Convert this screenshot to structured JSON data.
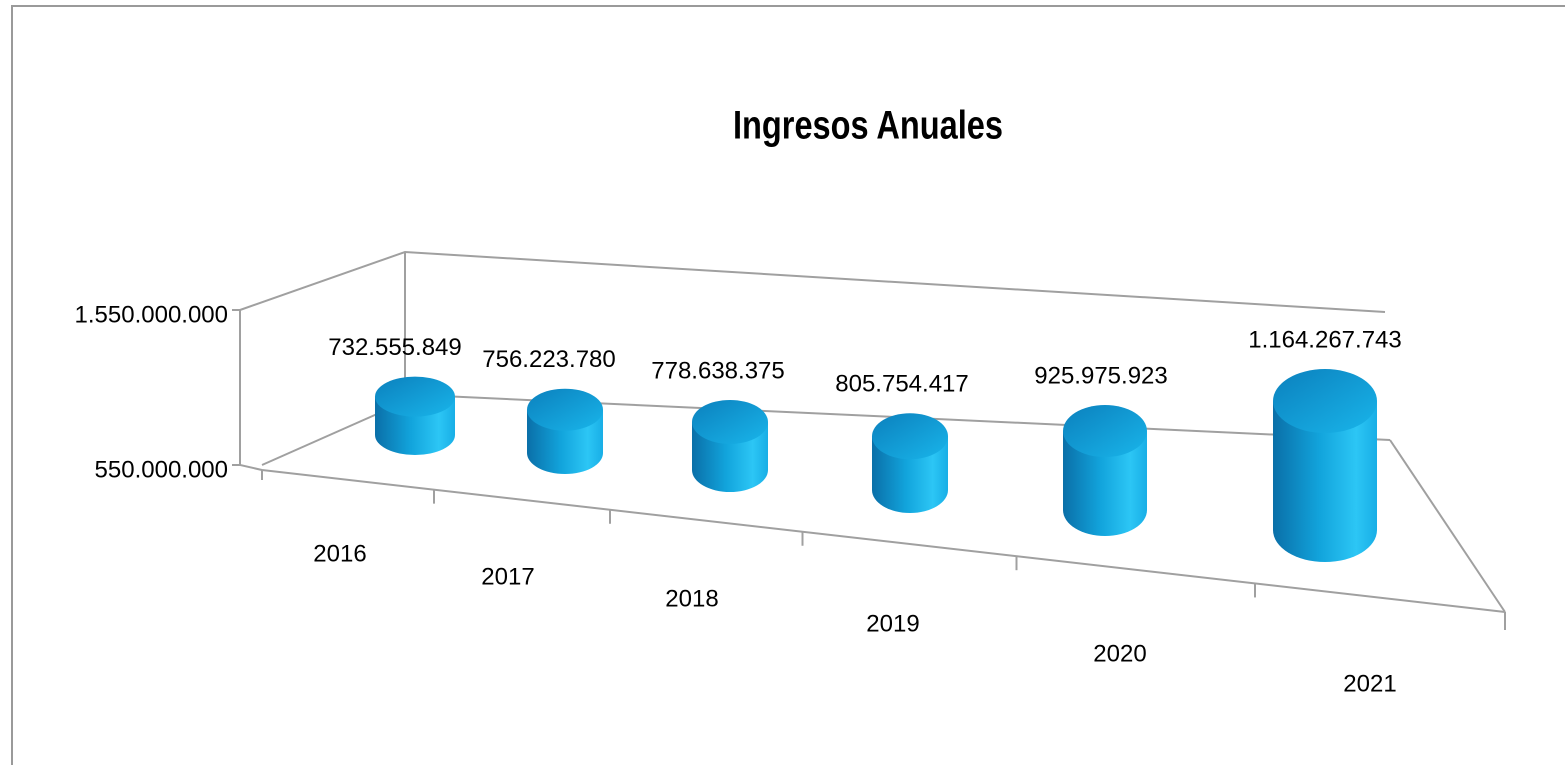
{
  "chart_data": {
    "type": "bar3d",
    "title": "Ingresos Anuales",
    "categories": [
      "2016",
      "2017",
      "2018",
      "2019",
      "2020",
      "2021"
    ],
    "values": [
      732555849,
      756223780,
      778638375,
      805754417,
      925975923,
      1164267743
    ],
    "value_labels": [
      "732.555.849",
      "756.223.780",
      "778.638.375",
      "805.754.417",
      "925.975.923",
      "1.164.267.743"
    ],
    "color": "#16aee6",
    "ylim": [
      550000000,
      1550000000
    ],
    "yticks": [
      {
        "value": 550000000,
        "label": "550.000.000"
      },
      {
        "value": 1550000000,
        "label": "1.550.000.000"
      }
    ]
  }
}
